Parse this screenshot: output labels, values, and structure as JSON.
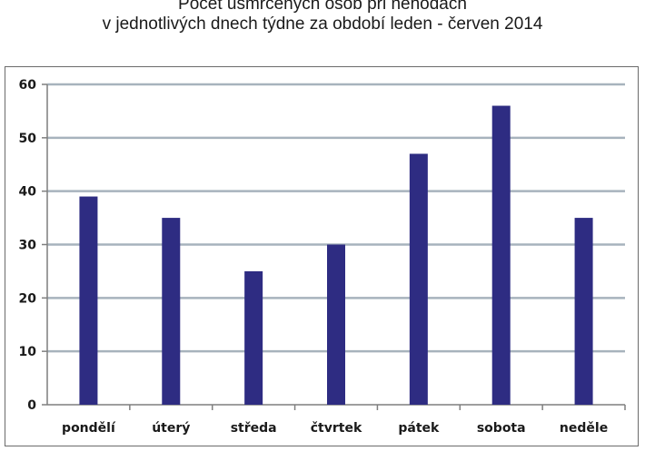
{
  "chart_data": {
    "type": "bar",
    "title_lines": [
      "Počet usmrcených osob při nehodách",
      "v jednotlivých dnech týdne za období leden - červen 2014"
    ],
    "categories": [
      "pondělí",
      "úterý",
      "středa",
      "čtvrtek",
      "pátek",
      "sobota",
      "neděle"
    ],
    "values": [
      39,
      35,
      25,
      30,
      47,
      56,
      35
    ],
    "yticks": [
      "0",
      "10",
      "20",
      "30",
      "40",
      "50",
      "60"
    ],
    "ylim": [
      0,
      60
    ],
    "grid": true,
    "legend": "none",
    "colors": {
      "bar": "#2e2c82",
      "grid": "#a7b3bd",
      "axis": "#7f7f7f"
    }
  }
}
